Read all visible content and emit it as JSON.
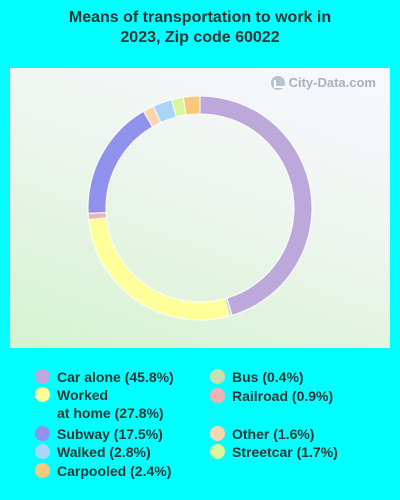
{
  "title_lines": [
    "Means of transportation to work in",
    "2023, Zip code 60022"
  ],
  "watermark": "City-Data.com",
  "chart_data": {
    "type": "pie",
    "style": "donut",
    "title": "Means of transportation to work in 2023, Zip code 60022",
    "start_angle_deg": 0,
    "direction": "clockwise",
    "slices": [
      {
        "name": "Car alone",
        "value": 45.8,
        "label": "Car alone (45.8%)",
        "color": "#bca8da"
      },
      {
        "name": "Bus",
        "value": 0.4,
        "label": "Bus (0.4%)",
        "color": "#c8dfb0"
      },
      {
        "name": "Worked at home",
        "value": 27.8,
        "label_lines": [
          "Worked",
          "at home (27.8%)"
        ],
        "color": "#ffff99"
      },
      {
        "name": "Railroad",
        "value": 0.9,
        "label": "Railroad (0.9%)",
        "color": "#f0b2b2"
      },
      {
        "name": "Subway",
        "value": 17.5,
        "label": "Subway (17.5%)",
        "color": "#9191ee"
      },
      {
        "name": "Other",
        "value": 1.6,
        "label": "Other (1.6%)",
        "color": "#fad5b0"
      },
      {
        "name": "Walked",
        "value": 2.8,
        "label": "Walked (2.8%)",
        "color": "#aad6fa"
      },
      {
        "name": "Streetcar",
        "value": 1.7,
        "label": "Streetcar (1.7%)",
        "color": "#d8f79d"
      },
      {
        "name": "Carpooled",
        "value": 2.4,
        "label": "Carpooled (2.4%)",
        "color": "#f9c97b"
      }
    ],
    "legend_placement": "bottom"
  }
}
